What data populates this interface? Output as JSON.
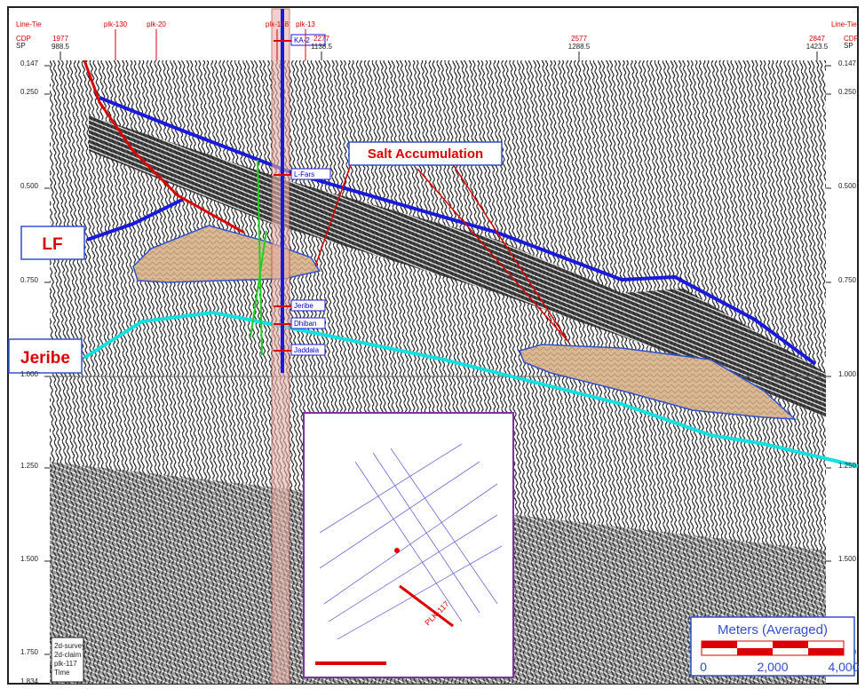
{
  "header": {
    "left_tie": "Line-Tie",
    "left_cdp": "CDP",
    "left_sp": "SP",
    "right_tie": "Line-Tie",
    "right_cdp": "CDP",
    "right_sp": "SP",
    "cdp": [
      "1977",
      "2277",
      "2577",
      "2847"
    ],
    "sp": [
      "988.5",
      "1138.5",
      "1288.5",
      "1423.5"
    ],
    "lines": [
      "plk-130",
      "plk-20",
      "plk-148",
      "plk-13"
    ]
  },
  "time_axis": [
    "0.147",
    "0.250",
    "0.500",
    "0.750",
    "1.000",
    "1.250",
    "1.500",
    "1.750",
    "1.834"
  ],
  "well_tops": [
    "KA-2",
    "L-Fars",
    "Jeribe",
    "Dhiban",
    "Jaddala"
  ],
  "annotations": {
    "salt": "Salt Accumulation",
    "lf": "LF",
    "jeribe": "Jeribe"
  },
  "inset": {
    "line": "PLK-117"
  },
  "legend_box": [
    "2d-survey",
    "2d-claim",
    "plk-117",
    "Time"
  ],
  "scale_bar": {
    "title": "Meters (Averaged)",
    "ticks": [
      "0",
      "2,000",
      "4,000"
    ]
  }
}
